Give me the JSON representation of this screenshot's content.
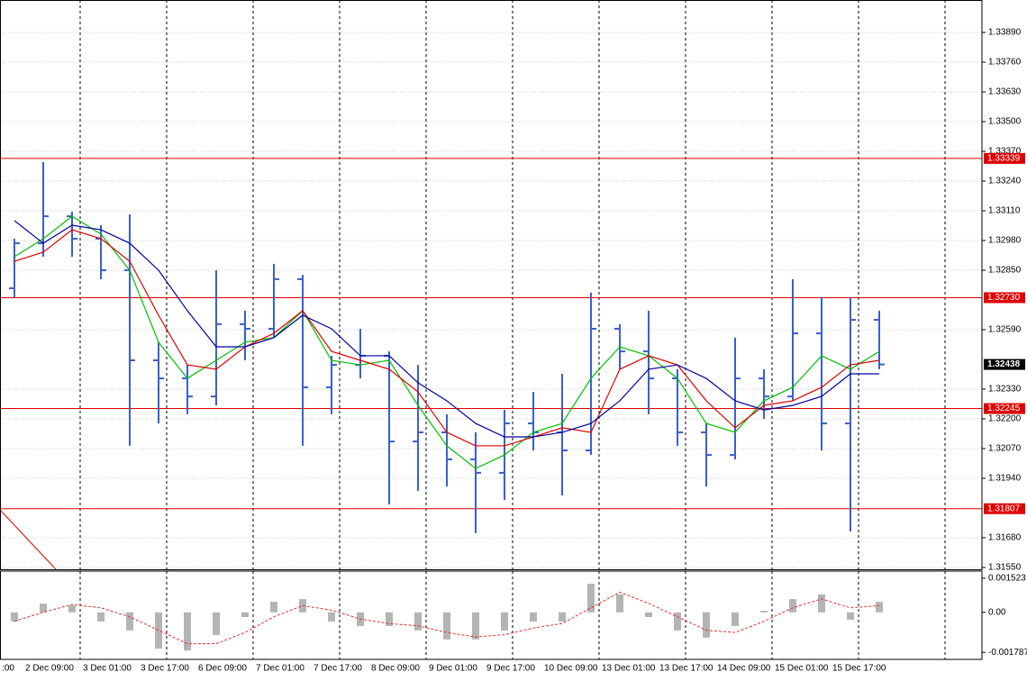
{
  "chart_data": [
    {
      "type": "ohlc",
      "categories": [
        ":00",
        null,
        "2 Dec 09:00",
        null,
        "3 Dec 01:00",
        null,
        "3 Dec 17:00",
        null,
        "6 Dec 09:00",
        null,
        "7 Dec 01:00",
        null,
        "7 Dec 17:00",
        null,
        "8 Dec 09:00",
        null,
        "9 Dec 01:00",
        null,
        "9 Dec 17:00",
        null,
        "10 Dec 09:00",
        null,
        "13 Dec 01:00",
        null,
        "13 Dec 17:00",
        null,
        "14 Dec 09:00",
        null,
        "15 Dec 01:00",
        null,
        "15 Dec 17:00"
      ],
      "color": "#3a5fcd",
      "open": [
        1.32771,
        1.32968,
        1.33086,
        1.32988,
        1.3285,
        1.32456,
        1.32377,
        1.32298,
        1.32614,
        1.32594,
        1.32811,
        1.32338,
        1.32436,
        1.32476,
        1.32101,
        1.32141,
        1.32023,
        1.31964,
        1.3218,
        1.32141,
        1.32062,
        1.32594,
        1.32495,
        1.32377,
        1.32141,
        1.32042,
        1.32377,
        1.32298,
        1.32574,
        1.3218,
        1.32633
      ],
      "high": [
        1.32988,
        1.33323,
        1.33106,
        1.33047,
        1.33094,
        1.32535,
        1.32436,
        1.3285,
        1.32673,
        1.32878,
        1.3283,
        1.32476,
        1.32594,
        1.32495,
        1.32436,
        1.3222,
        1.32141,
        1.32239,
        1.32318,
        1.32397,
        1.32752,
        1.32614,
        1.32673,
        1.32417,
        1.3218,
        1.32555,
        1.32417,
        1.32811,
        1.32732,
        1.32732,
        1.32673
      ],
      "low": [
        1.32732,
        1.32909,
        1.32909,
        1.32811,
        1.32082,
        1.3218,
        1.3222,
        1.32259,
        1.32456,
        1.32555,
        1.32082,
        1.3222,
        1.32377,
        1.31826,
        1.31885,
        1.31904,
        1.317,
        1.31845,
        1.32062,
        1.31865,
        1.32042,
        1.32417,
        1.3222,
        1.32082,
        1.31904,
        1.32023,
        1.322,
        1.32279,
        1.32062,
        1.31707,
        1.32417
      ],
      "close": [
        1.32968,
        1.33086,
        1.32988,
        1.3285,
        1.32456,
        1.32377,
        1.32298,
        1.32614,
        1.32594,
        1.32811,
        1.32338,
        1.32436,
        1.32476,
        1.32101,
        1.32141,
        1.32023,
        1.31964,
        1.3218,
        1.32141,
        1.32062,
        1.32594,
        1.32495,
        1.32377,
        1.32141,
        1.32042,
        1.32377,
        1.32298,
        1.32574,
        1.3218,
        1.32633,
        1.32438
      ],
      "lines": [
        {
          "color": "#00c000",
          "values": [
            1.32909,
            1.32988,
            1.33086,
            1.33008,
            1.3285,
            1.32535,
            1.32377,
            1.32456,
            1.32535,
            1.32555,
            1.32673,
            1.32456,
            1.32436,
            1.32456,
            1.32259,
            1.32082,
            1.31983,
            1.32042,
            1.32141,
            1.3218,
            1.32377,
            1.32515,
            1.32476,
            1.32377,
            1.3218,
            1.32141,
            1.32279,
            1.32338,
            1.32476,
            1.32417,
            1.32495
          ]
        },
        {
          "color": "#e00000",
          "values": [
            1.32889,
            1.32929,
            1.33027,
            1.32988,
            1.32889,
            1.32653,
            1.32436,
            1.32417,
            1.32515,
            1.32574,
            1.32673,
            1.32495,
            1.32456,
            1.32417,
            1.32318,
            1.32141,
            1.32082,
            1.32082,
            1.32121,
            1.32161,
            1.32141,
            1.32417,
            1.32476,
            1.32436,
            1.32279,
            1.32161,
            1.32259,
            1.32279,
            1.32338,
            1.32436,
            1.32456
          ]
        },
        {
          "color": "#0000a0",
          "values": [
            1.33067,
            1.32968,
            1.33047,
            1.33027,
            1.32968,
            1.3285,
            1.32673,
            1.32515,
            1.32515,
            1.32555,
            1.32653,
            1.32594,
            1.32476,
            1.32476,
            1.32358,
            1.32279,
            1.3218,
            1.32121,
            1.32121,
            1.32141,
            1.3218,
            1.32279,
            1.32417,
            1.32436,
            1.32377,
            1.32279,
            1.32239,
            1.32259,
            1.32298,
            1.32397,
            1.32397
          ]
        }
      ],
      "ylim": [
        1.31542,
        1.34024
      ],
      "yticks": [
        {
          "value": 1.3389,
          "label": "1.33890"
        },
        {
          "value": 1.3376,
          "label": "1.33760"
        },
        {
          "value": 1.3363,
          "label": "1.33630"
        },
        {
          "value": 1.335,
          "label": "1.33500"
        },
        {
          "value": 1.3337,
          "label": "1.33370"
        },
        {
          "value": 1.3324,
          "label": "1.33240"
        },
        {
          "value": 1.3311,
          "label": "1.33110"
        },
        {
          "value": 1.3298,
          "label": "1.32980"
        },
        {
          "value": 1.3285,
          "label": "1.32850"
        },
        {
          "value": 1.3259,
          "label": "1.32590"
        },
        {
          "value": 1.3233,
          "label": "1.32330"
        },
        {
          "value": 1.322,
          "label": "1.32200"
        },
        {
          "value": 1.3207,
          "label": "1.32070"
        },
        {
          "value": 1.3194,
          "label": "1.31940"
        },
        {
          "value": 1.3168,
          "label": "1.31680"
        },
        {
          "value": 1.3155,
          "label": "1.31550"
        }
      ],
      "grid": true,
      "level_color": "#e00000",
      "levels": [
        {
          "value": 1.33339,
          "label": "1.33339"
        },
        {
          "value": 1.3273,
          "label": "1.32730"
        },
        {
          "value": 1.32245,
          "label": "1.32245"
        },
        {
          "value": 1.31807,
          "label": "1.31807"
        }
      ],
      "current_price": {
        "value": 1.32438,
        "label": "1.32438"
      }
    },
    {
      "type": "oscillator",
      "color": "#b4b4b4",
      "values": [
        -0.00041,
        0.00039,
        0.00031,
        -0.00041,
        -0.00081,
        -0.00162,
        -0.0017,
        -0.00101,
        -0.00021,
        0.00047,
        0.00059,
        -0.00041,
        -0.00061,
        -0.00061,
        -0.00081,
        -0.00121,
        -0.00121,
        -0.00081,
        -0.00041,
        -0.00041,
        0.00128,
        0.0008,
        -0.00021,
        -0.00081,
        -0.00113,
        -0.00061,
        7e-05,
        0.00059,
        0.0008,
        -0.00033,
        0.00047
      ],
      "signal_color": "#e03030",
      "signal": [
        -0.0004,
        0,
        0.00035,
        0.0002,
        -0.0002,
        -0.0008,
        -0.0014,
        -0.0014,
        -0.0009,
        -0.0002,
        0.0003,
        0.0001,
        -0.0003,
        -0.0005,
        -0.0006,
        -0.0009,
        -0.0011,
        -0.001,
        -0.0007,
        -0.0005,
        0.0002,
        0.0009,
        0.0004,
        -0.0002,
        -0.0008,
        -0.0009,
        -0.0004,
        0.0002,
        0.0006,
        0.0002,
        0.0003
      ],
      "ylim": [
        -0.0021,
        0.00176
      ],
      "yticks": [
        0.001523,
        {
          "value": 0,
          "label": "0.00"
        },
        -0.001787
      ]
    }
  ]
}
